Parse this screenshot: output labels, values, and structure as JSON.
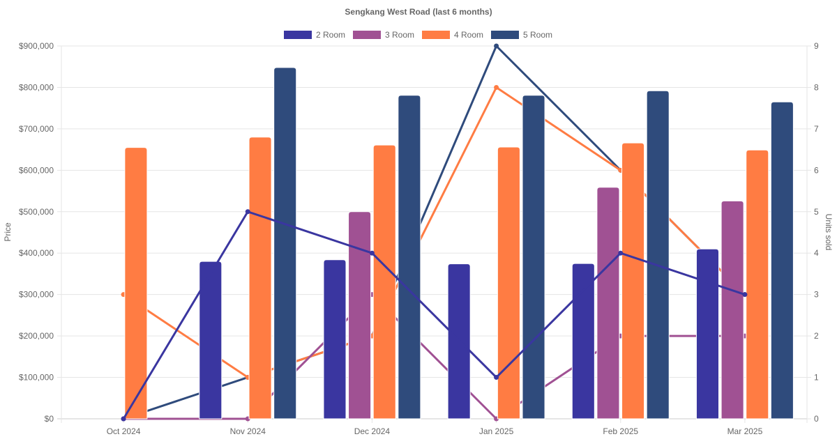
{
  "chart_data": {
    "type": "bar",
    "title": "Sengkang West Road (last 6 months)",
    "categories": [
      "Oct 2024",
      "Nov 2024",
      "Dec 2024",
      "Jan 2025",
      "Feb 2025",
      "Mar 2025"
    ],
    "legend_position": "top",
    "left_axis": {
      "label": "Price",
      "range": [
        0,
        900000
      ],
      "step": 100000,
      "ticks": [
        "$0",
        "$100,000",
        "$200,000",
        "$300,000",
        "$400,000",
        "$500,000",
        "$600,000",
        "$700,000",
        "$800,000",
        "$900,000"
      ]
    },
    "right_axis": {
      "label": "Units sold",
      "range": [
        0,
        9
      ],
      "step": 1,
      "ticks": [
        "0",
        "1",
        "2",
        "3",
        "4",
        "5",
        "6",
        "7",
        "8",
        "9"
      ]
    },
    "grid": true,
    "series": [
      {
        "name": "2 Room",
        "color": "#3a36a0",
        "price_bars": [
          null,
          380000,
          384000,
          374000,
          375000,
          410000
        ],
        "units_line": [
          0,
          5,
          4,
          1,
          4,
          3
        ]
      },
      {
        "name": "3 Room",
        "color": "#a05193",
        "price_bars": [
          null,
          null,
          500000,
          null,
          559000,
          526000
        ],
        "units_line": [
          0,
          0,
          3,
          0,
          2,
          2
        ]
      },
      {
        "name": "4 Room",
        "color": "#ff7c43",
        "price_bars": [
          655000,
          680000,
          661000,
          656000,
          666000,
          649000
        ],
        "units_line": [
          3,
          1,
          2,
          8,
          6,
          3
        ]
      },
      {
        "name": "5 Room",
        "color": "#2f4b7c",
        "price_bars": [
          null,
          848000,
          781000,
          781000,
          792000,
          765000
        ],
        "units_line": [
          0,
          1,
          2,
          9,
          6,
          3
        ]
      }
    ]
  }
}
